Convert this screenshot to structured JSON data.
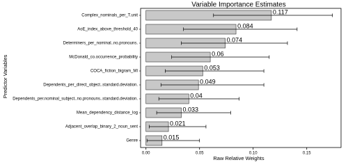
{
  "chart_data": {
    "type": "bar",
    "orientation": "horizontal",
    "title": "Variable Importance Estimates",
    "x_label": "Raw Relative Weights",
    "y_label": "Predictor Variables",
    "categories": [
      "Complex_nominals_per_T.unit",
      "AoE_index_above_threshold_40",
      "Determiners_per_nominal..no.pronouns.",
      "McDonald_co.occurrence_probability",
      "COCA_fiction_bigram_MI",
      "Dependents_per_direct_object..standard.deviation.",
      "Dependents_per.nominal_subject..no.pronouns..standard.deviation.",
      "Mean_dependency_distance_log",
      "Adjacent_overlap_binary_2_noun_sent",
      "Genre"
    ],
    "values": [
      0.117,
      0.084,
      0.074,
      0.06,
      0.053,
      0.049,
      0.04,
      0.033,
      0.021,
      0.015
    ],
    "error_low": [
      0.063,
      0.035,
      0.033,
      0.024,
      0.018,
      0.014,
      0.012,
      0.01,
      0.003,
      0.001
    ],
    "error_high": [
      0.174,
      0.141,
      0.132,
      0.115,
      0.11,
      0.11,
      0.087,
      0.079,
      0.056,
      0.05
    ],
    "color": "#c8c8c8",
    "xlim": [
      -0.005,
      0.182
    ],
    "xticks": [
      {
        "value": 0,
        "label": "0.00"
      },
      0.05,
      {
        "value": 0.1,
        "label": "0.10"
      },
      0.15
    ]
  }
}
